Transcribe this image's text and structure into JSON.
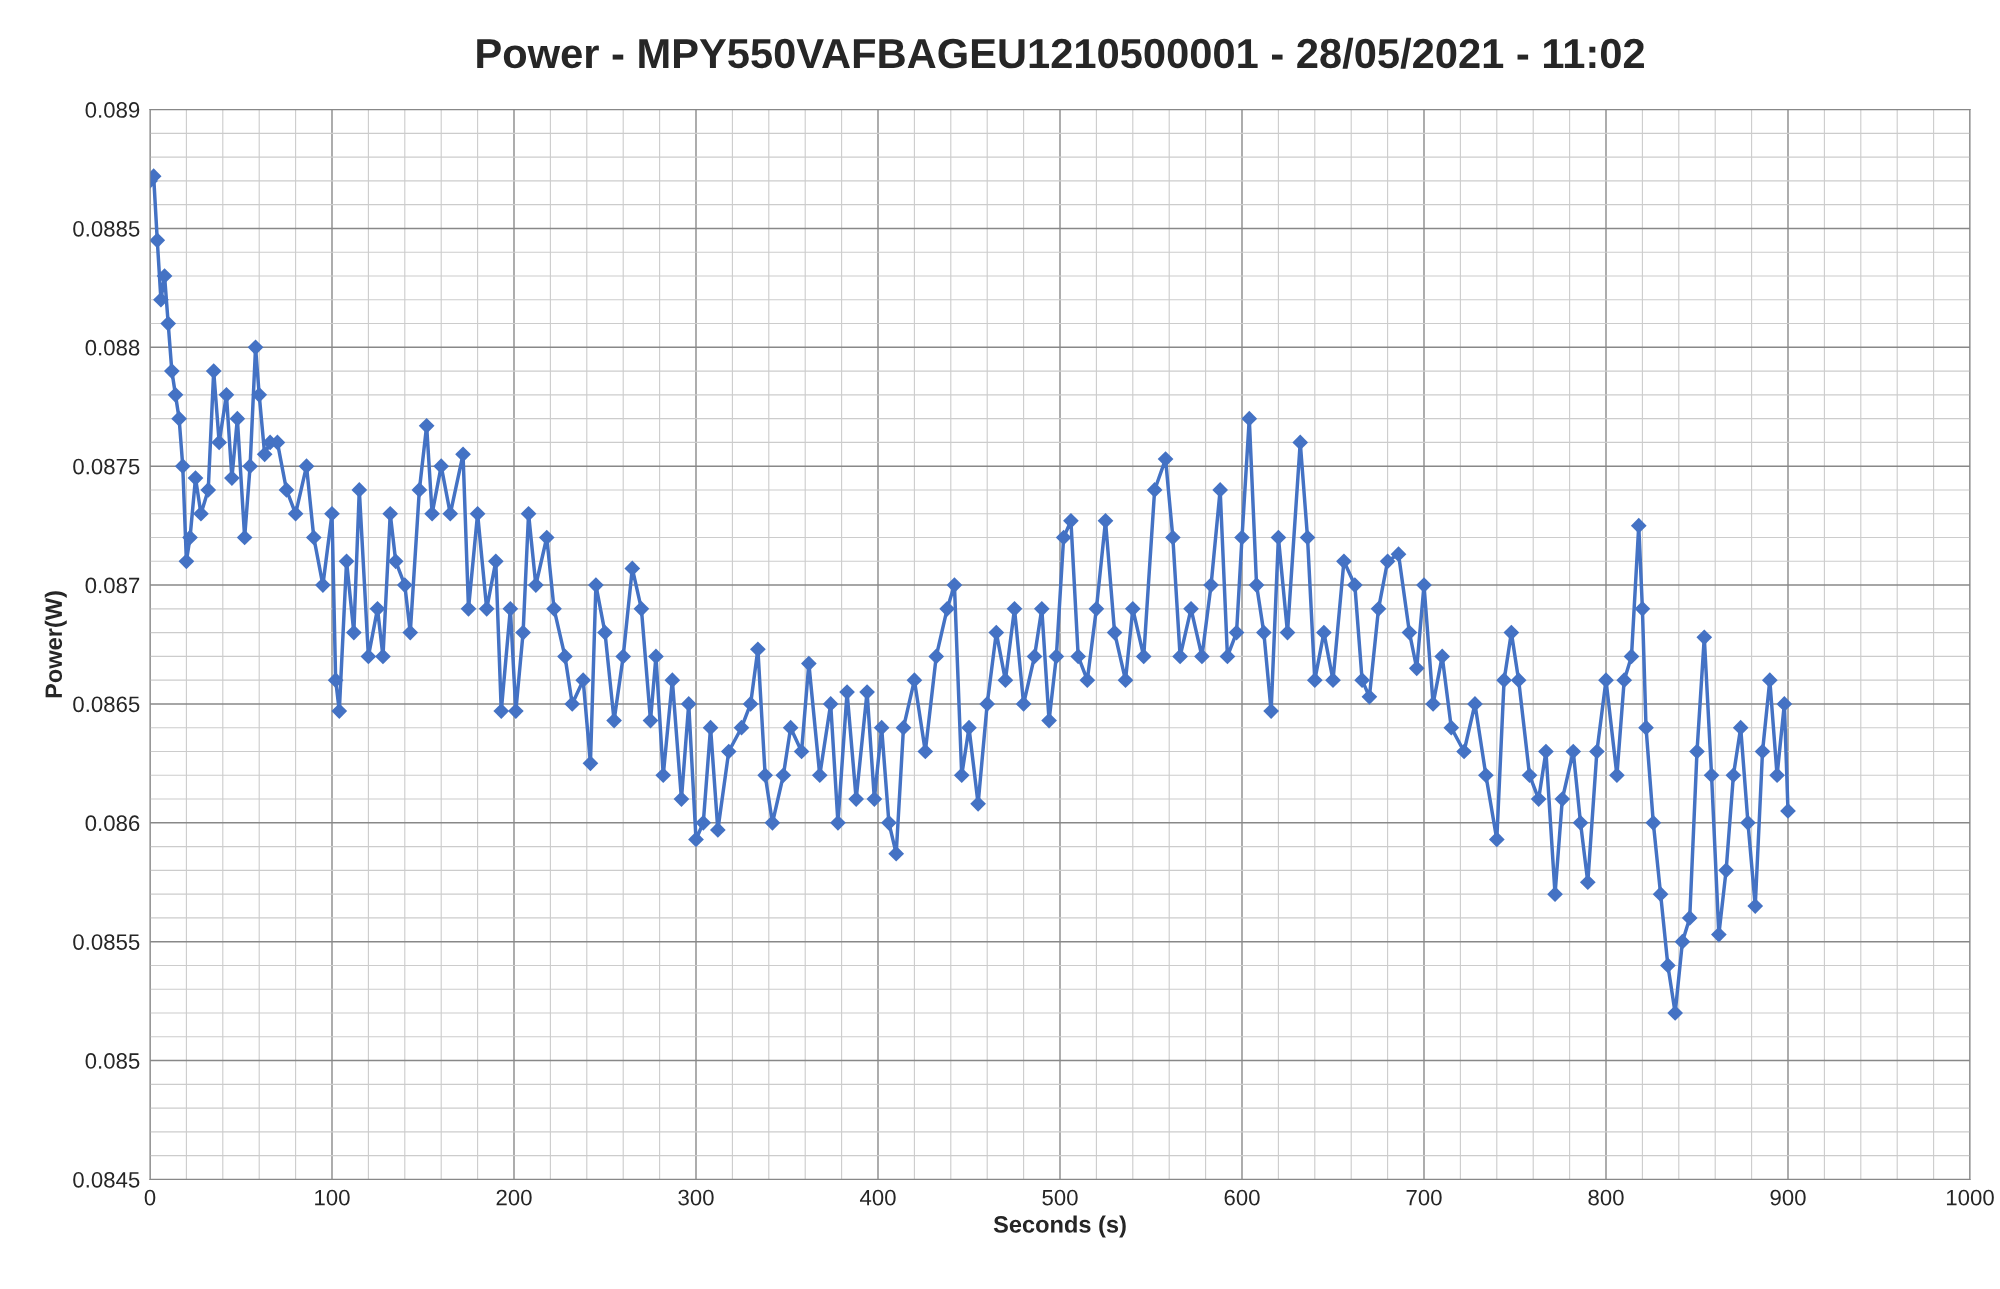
{
  "chart_data": {
    "type": "line",
    "title": "Power - MPY550VAFBAGEU1210500001 - 28/05/2021 - 11:02",
    "xlabel": "Seconds (s)",
    "ylabel": "Power(W)",
    "xlim": [
      0,
      1000
    ],
    "xticks": [
      0,
      100,
      200,
      300,
      400,
      500,
      600,
      700,
      800,
      900,
      1000
    ],
    "ylim": [
      0.0845,
      0.089
    ],
    "yticks": [
      0.0845,
      0.085,
      0.0855,
      0.086,
      0.0865,
      0.087,
      0.0875,
      0.088,
      0.0885,
      0.089
    ],
    "grid": true,
    "marker": "diamond",
    "line_style": "solid",
    "series": [
      {
        "color": "#4472c4",
        "x": [
          0,
          2,
          4,
          6,
          8,
          10,
          12,
          14,
          16,
          18,
          20,
          22,
          25,
          28,
          32,
          35,
          38,
          42,
          45,
          48,
          52,
          55,
          58,
          60,
          63,
          66,
          70,
          75,
          80,
          86,
          90,
          95,
          100,
          102,
          104,
          108,
          112,
          115,
          120,
          125,
          128,
          132,
          135,
          140,
          143,
          148,
          152,
          155,
          160,
          165,
          172,
          175,
          180,
          185,
          190,
          193,
          198,
          201,
          205,
          208,
          212,
          218,
          222,
          228,
          232,
          238,
          242,
          245,
          250,
          255,
          260,
          265,
          270,
          275,
          278,
          282,
          287,
          292,
          296,
          300,
          304,
          308,
          312,
          318,
          325,
          330,
          334,
          338,
          342,
          348,
          352,
          358,
          362,
          368,
          374,
          378,
          383,
          388,
          394,
          398,
          402,
          406,
          410,
          414,
          420,
          426,
          432,
          438,
          442,
          446,
          450,
          455,
          460,
          465,
          470,
          475,
          480,
          486,
          490,
          494,
          498,
          502,
          506,
          510,
          515,
          520,
          525,
          530,
          536,
          540,
          546,
          552,
          558,
          562,
          566,
          572,
          578,
          583,
          588,
          592,
          597,
          600,
          604,
          608,
          612,
          616,
          620,
          625,
          632,
          636,
          640,
          645,
          650,
          656,
          662,
          666,
          670,
          675,
          680,
          686,
          692,
          696,
          700,
          705,
          710,
          715,
          722,
          728,
          734,
          740,
          744,
          748,
          752,
          758,
          763,
          767,
          772,
          776,
          782,
          786,
          790,
          795,
          800,
          806,
          810,
          814,
          818,
          820,
          822,
          826,
          830,
          834,
          838,
          842,
          846,
          850,
          854,
          858,
          862,
          866,
          870,
          874,
          878,
          882,
          886,
          890,
          894,
          898,
          900
        ],
        "values": [
          0.0887,
          0.08872,
          0.08845,
          0.0882,
          0.0883,
          0.0881,
          0.0879,
          0.0878,
          0.0877,
          0.0875,
          0.0871,
          0.0872,
          0.08745,
          0.0873,
          0.0874,
          0.0879,
          0.0876,
          0.0878,
          0.08745,
          0.0877,
          0.0872,
          0.0875,
          0.088,
          0.0878,
          0.08755,
          0.0876,
          0.0876,
          0.0874,
          0.0873,
          0.0875,
          0.0872,
          0.087,
          0.0873,
          0.0866,
          0.08647,
          0.0871,
          0.0868,
          0.0874,
          0.0867,
          0.0869,
          0.0867,
          0.0873,
          0.0871,
          0.087,
          0.0868,
          0.0874,
          0.08767,
          0.0873,
          0.0875,
          0.0873,
          0.08755,
          0.0869,
          0.0873,
          0.0869,
          0.0871,
          0.08647,
          0.0869,
          0.08647,
          0.0868,
          0.0873,
          0.087,
          0.0872,
          0.0869,
          0.0867,
          0.0865,
          0.0866,
          0.08625,
          0.087,
          0.0868,
          0.08643,
          0.0867,
          0.08707,
          0.0869,
          0.08643,
          0.0867,
          0.0862,
          0.0866,
          0.0861,
          0.0865,
          0.08593,
          0.086,
          0.0864,
          0.08597,
          0.0863,
          0.0864,
          0.0865,
          0.08673,
          0.0862,
          0.086,
          0.0862,
          0.0864,
          0.0863,
          0.08667,
          0.0862,
          0.0865,
          0.086,
          0.08655,
          0.0861,
          0.08655,
          0.0861,
          0.0864,
          0.086,
          0.08587,
          0.0864,
          0.0866,
          0.0863,
          0.0867,
          0.0869,
          0.087,
          0.0862,
          0.0864,
          0.08608,
          0.0865,
          0.0868,
          0.0866,
          0.0869,
          0.0865,
          0.0867,
          0.0869,
          0.08643,
          0.0867,
          0.0872,
          0.08727,
          0.0867,
          0.0866,
          0.0869,
          0.08727,
          0.0868,
          0.0866,
          0.0869,
          0.0867,
          0.0874,
          0.08753,
          0.0872,
          0.0867,
          0.0869,
          0.0867,
          0.087,
          0.0874,
          0.0867,
          0.0868,
          0.0872,
          0.0877,
          0.087,
          0.0868,
          0.08647,
          0.0872,
          0.0868,
          0.0876,
          0.0872,
          0.0866,
          0.0868,
          0.0866,
          0.0871,
          0.087,
          0.0866,
          0.08653,
          0.0869,
          0.0871,
          0.08713,
          0.0868,
          0.08665,
          0.087,
          0.0865,
          0.0867,
          0.0864,
          0.0863,
          0.0865,
          0.0862,
          0.08593,
          0.0866,
          0.0868,
          0.0866,
          0.0862,
          0.0861,
          0.0863,
          0.0857,
          0.0861,
          0.0863,
          0.086,
          0.08575,
          0.0863,
          0.0866,
          0.0862,
          0.0866,
          0.0867,
          0.08725,
          0.0869,
          0.0864,
          0.086,
          0.0857,
          0.0854,
          0.0852,
          0.0855,
          0.0856,
          0.0863,
          0.08678,
          0.0862,
          0.08553,
          0.0858,
          0.0862,
          0.0864,
          0.086,
          0.08565,
          0.0863,
          0.0866,
          0.0862,
          0.0865,
          0.08605
        ]
      }
    ]
  }
}
